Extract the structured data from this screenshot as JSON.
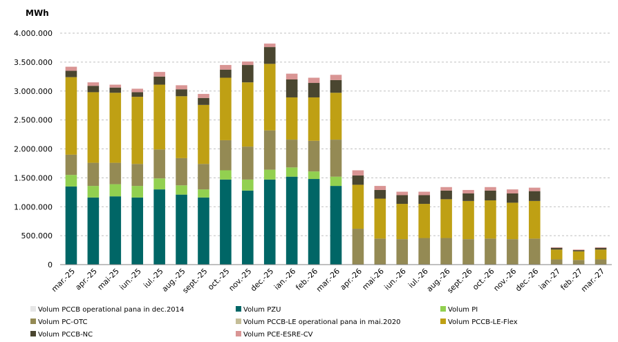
{
  "chart_data": {
    "type": "bar",
    "stacked": true,
    "unit_label": "MWh",
    "xlabel": "",
    "ylabel": "",
    "ylim": [
      0,
      4000000
    ],
    "yticks": [
      0,
      500000,
      1000000,
      1500000,
      2000000,
      2500000,
      3000000,
      3500000,
      4000000
    ],
    "ytick_labels": [
      "0",
      "500.000",
      "1.000.000",
      "1.500.000",
      "2.000.000",
      "2.500.000",
      "3.000.000",
      "3.500.000",
      "4.000.000"
    ],
    "grid": "horizontal-dashed",
    "legend_position": "bottom",
    "categories": [
      "mar.-25",
      "apr.-25",
      "mai-25",
      "iun.-25",
      "iul.-25",
      "aug.-25",
      "sept.-25",
      "oct.-25",
      "nov.-25",
      "dec.-25",
      "ian.-26",
      "feb.-26",
      "mar.-26",
      "apr.-26",
      "mai-26",
      "iun.-26",
      "iul.-26",
      "aug.-26",
      "sept.-26",
      "oct.-26",
      "nov.-26",
      "dec.-26",
      "ian.-27",
      "feb.-27",
      "mar.-27"
    ],
    "series": [
      {
        "name": "Volum PCCB operational pana in dec.2014",
        "color": "#e6e6e6",
        "values": [
          0,
          0,
          0,
          0,
          0,
          0,
          0,
          0,
          0,
          0,
          0,
          0,
          0,
          0,
          0,
          0,
          0,
          0,
          0,
          0,
          0,
          0,
          0,
          0,
          0
        ]
      },
      {
        "name": "Volum PZU",
        "color": "#006666",
        "values": [
          1350000,
          1160000,
          1180000,
          1160000,
          1300000,
          1210000,
          1160000,
          1470000,
          1280000,
          1470000,
          1520000,
          1480000,
          1360000,
          0,
          0,
          0,
          0,
          0,
          0,
          0,
          0,
          0,
          0,
          0,
          0
        ]
      },
      {
        "name": "Volum PI",
        "color": "#92d050",
        "values": [
          200000,
          200000,
          210000,
          200000,
          190000,
          160000,
          140000,
          160000,
          190000,
          170000,
          160000,
          130000,
          160000,
          0,
          0,
          0,
          0,
          0,
          0,
          0,
          0,
          0,
          0,
          0,
          0
        ]
      },
      {
        "name": "Volum PC-OTC",
        "color": "#948a54",
        "values": [
          350000,
          400000,
          370000,
          380000,
          500000,
          470000,
          440000,
          520000,
          570000,
          680000,
          480000,
          530000,
          640000,
          620000,
          450000,
          440000,
          460000,
          460000,
          440000,
          450000,
          440000,
          450000,
          90000,
          80000,
          90000
        ]
      },
      {
        "name": "Volum PCCB-LE operational pana in mai.2020",
        "color": "#c4bd97",
        "values": [
          0,
          0,
          0,
          0,
          0,
          0,
          0,
          0,
          0,
          0,
          0,
          0,
          0,
          0,
          0,
          0,
          0,
          0,
          0,
          0,
          0,
          0,
          0,
          0,
          0
        ]
      },
      {
        "name": "Volum PCCB-LE-Flex",
        "color": "#bfa014",
        "values": [
          1340000,
          1220000,
          1210000,
          1160000,
          1120000,
          1070000,
          1020000,
          1080000,
          1110000,
          1150000,
          730000,
          750000,
          810000,
          760000,
          690000,
          610000,
          590000,
          670000,
          660000,
          660000,
          630000,
          650000,
          170000,
          150000,
          170000
        ]
      },
      {
        "name": "Volum PCCB-NC",
        "color": "#4a4630",
        "values": [
          110000,
          110000,
          90000,
          80000,
          140000,
          120000,
          120000,
          140000,
          300000,
          290000,
          310000,
          250000,
          220000,
          160000,
          150000,
          150000,
          150000,
          150000,
          130000,
          170000,
          160000,
          170000,
          30000,
          20000,
          30000
        ]
      },
      {
        "name": "Volum PCE-ESRE-CV",
        "color": "#d99594",
        "values": [
          70000,
          60000,
          50000,
          60000,
          80000,
          70000,
          70000,
          80000,
          60000,
          60000,
          100000,
          90000,
          90000,
          90000,
          70000,
          60000,
          60000,
          60000,
          60000,
          60000,
          70000,
          60000,
          10000,
          10000,
          10000
        ]
      }
    ]
  }
}
